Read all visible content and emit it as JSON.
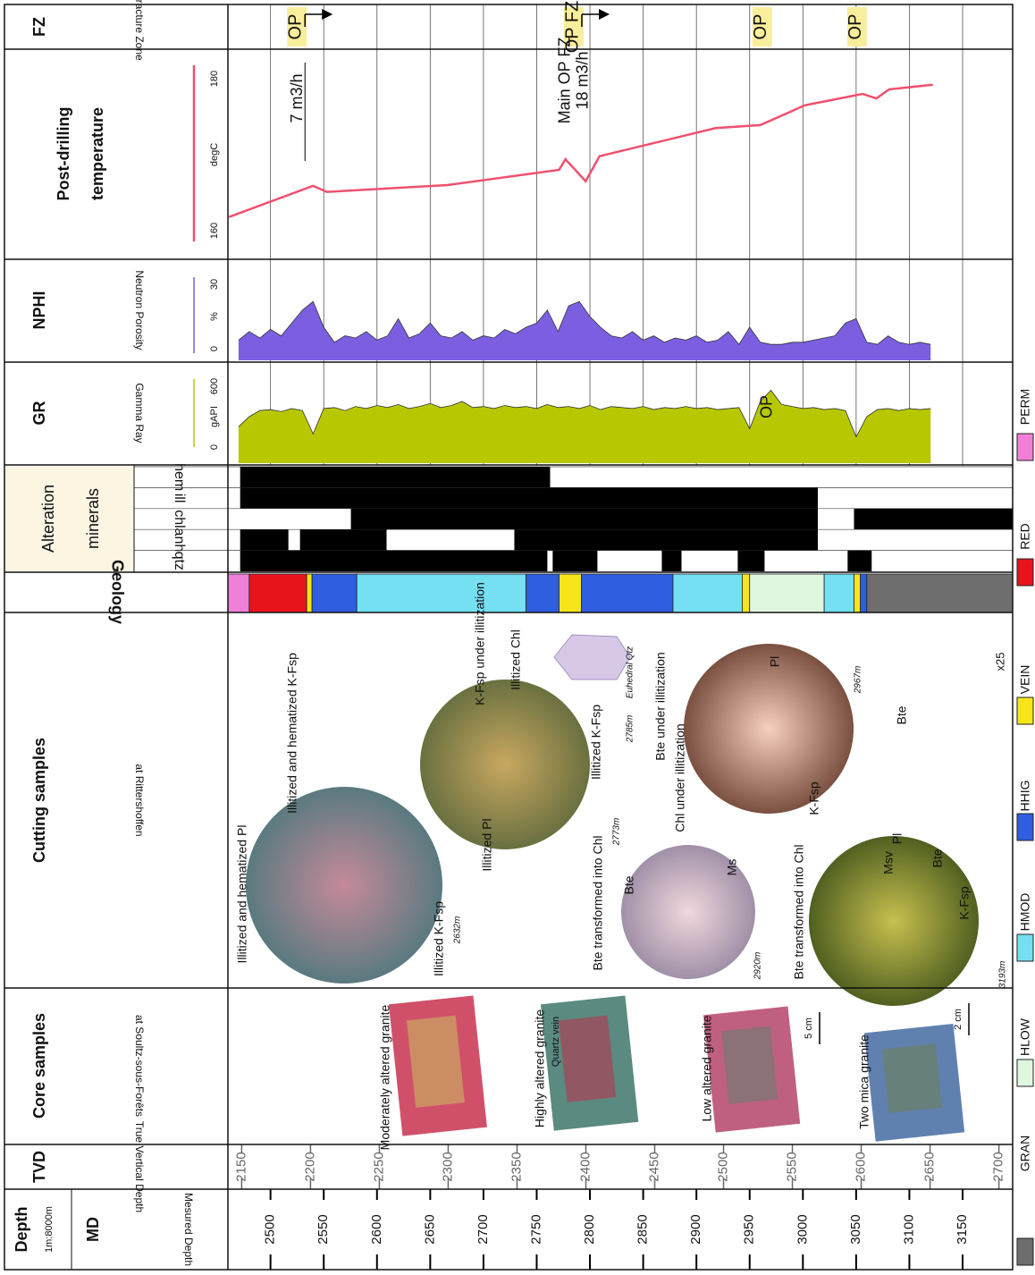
{
  "chart_data": {
    "type": "well-log",
    "md": {
      "title": "Depth",
      "scale": "1m:8000m",
      "label": "MD",
      "sublabel": "Mesured Depth",
      "xlim": [
        2460,
        3197
      ],
      "xticks": [
        2500,
        2550,
        2600,
        2650,
        2700,
        2750,
        2800,
        2850,
        2900,
        2950,
        3000,
        3050,
        3100,
        3150
      ]
    },
    "tvd": {
      "label": "TVD",
      "sublabel": "True Vertical Depth",
      "xlim": [
        2140,
        2710
      ],
      "xticks": [
        2150,
        2200,
        2250,
        2300,
        2350,
        2400,
        2450,
        2500,
        2550,
        2600,
        2650,
        2700
      ]
    },
    "core": {
      "title": "Core samples",
      "subtitle": "at Soultz-sous-Forêts",
      "samples": [
        {
          "label": "Moderately altered granite"
        },
        {
          "label": "Highly altered granite",
          "note": "Quartz vein"
        },
        {
          "label": "Low altered granite",
          "scale": "5 cm"
        },
        {
          "label": "Two mica granite",
          "scale": "2 cm"
        }
      ]
    },
    "cuttings": {
      "title": "Cutting samples",
      "subtitle": "at Rittershoffen",
      "magnification": "x25",
      "samples": [
        {
          "depth": "2632m",
          "labels": [
            "Illitized and hematized Pl",
            "Illitized and hematized K-Fsp",
            "Illitized K-Fsp"
          ]
        },
        {
          "depth": "2773m",
          "labels": [
            "K-Fsp under illitization",
            "Illitized Chl",
            "Illitized K-Fsp",
            "Illitized Pl"
          ]
        },
        {
          "depth": "2785m",
          "labels": [
            "Euhedral Qtz"
          ]
        },
        {
          "depth": "2920m",
          "labels": [
            "Bte transformed into Chl",
            "Bte",
            "Ms"
          ]
        },
        {
          "depth": "2967m",
          "labels": [
            "Bte under illitization",
            "Chl under illitization",
            "Pl",
            "Bte",
            "K-Fsp"
          ]
        },
        {
          "depth": "3193m",
          "labels": [
            "Bte transformed into Chl",
            "Msv",
            "Pl",
            "Bte",
            "K-Fsp"
          ]
        }
      ]
    },
    "geology": {
      "title": "Geology",
      "intervals": [
        {
          "top": 2460,
          "base": 2480,
          "unit": "PERM"
        },
        {
          "top": 2480,
          "base": 2534,
          "unit": "RED"
        },
        {
          "top": 2534,
          "base": 2539,
          "unit": "VEIN"
        },
        {
          "top": 2539,
          "base": 2581,
          "unit": "HHIG"
        },
        {
          "top": 2581,
          "base": 2740,
          "unit": "HMOD"
        },
        {
          "top": 2740,
          "base": 2771,
          "unit": "HHIG"
        },
        {
          "top": 2771,
          "base": 2792,
          "unit": "VEIN"
        },
        {
          "top": 2792,
          "base": 2878,
          "unit": "HHIG"
        },
        {
          "top": 2878,
          "base": 2943,
          "unit": "HMOD"
        },
        {
          "top": 2943,
          "base": 2950,
          "unit": "VEIN"
        },
        {
          "top": 2950,
          "base": 3020,
          "unit": "HLOW"
        },
        {
          "top": 3020,
          "base": 3048,
          "unit": "HMOD"
        },
        {
          "top": 3048,
          "base": 3054,
          "unit": "VEIN"
        },
        {
          "top": 3054,
          "base": 3060,
          "unit": "HHIG"
        },
        {
          "top": 3060,
          "base": 3197,
          "unit": "GRAN"
        }
      ]
    },
    "legend": [
      {
        "name": "GRAN",
        "color": "#6e6e6e"
      },
      {
        "name": "HLOW",
        "color": "#dff7df"
      },
      {
        "name": "HMOD",
        "color": "#74e0f2"
      },
      {
        "name": "HHIG",
        "color": "#2f5ee0"
      },
      {
        "name": "VEIN",
        "color": "#f7e51a"
      },
      {
        "name": "RED",
        "color": "#e8141c"
      },
      {
        "name": "PERM",
        "color": "#f07fd8"
      }
    ],
    "alteration": {
      "title": [
        "Alteration",
        "minerals"
      ],
      "minerals": [
        {
          "name": "hem",
          "intervals": [
            [
              2471.5,
              2762.6
            ]
          ]
        },
        {
          "name": "ill",
          "intervals": [
            [
              2471.5,
              3014
            ]
          ]
        },
        {
          "name": "chl",
          "intervals": [
            [
              2575.5,
              3014
            ],
            [
              3048,
              3197
            ]
          ]
        },
        {
          "name": "anh",
          "intervals": [
            [
              2471.5,
              2516.8
            ],
            [
              2527.7,
              2609
            ],
            [
              2729,
              3014
            ]
          ]
        },
        {
          "name": "qtz",
          "intervals": [
            [
              2471.5,
              2760
            ],
            [
              2765,
              2807
            ],
            [
              2867.5,
              2886
            ],
            [
              2938.8,
              2964
            ],
            [
              3042,
              3064.6
            ]
          ]
        }
      ]
    },
    "gr": {
      "label": "GR",
      "sublabel": "Gamma Ray",
      "unit": "gAPI",
      "ylim": [
        0,
        600
      ],
      "yticks": [
        0,
        600
      ],
      "color": "#b8c800",
      "annotation": {
        "md": 2967,
        "text": "OP"
      },
      "x": [
        2470,
        2480,
        2490,
        2500,
        2510,
        2520,
        2530,
        2540,
        2550,
        2560,
        2570,
        2580,
        2590,
        2600,
        2610,
        2620,
        2630,
        2640,
        2650,
        2660,
        2670,
        2680,
        2690,
        2700,
        2710,
        2720,
        2730,
        2740,
        2750,
        2760,
        2770,
        2780,
        2790,
        2800,
        2810,
        2820,
        2830,
        2840,
        2850,
        2860,
        2870,
        2880,
        2890,
        2900,
        2910,
        2920,
        2930,
        2940,
        2950,
        2960,
        2970,
        2980,
        2990,
        3000,
        3010,
        3020,
        3030,
        3040,
        3050,
        3060,
        3070,
        3080,
        3090,
        3100,
        3110,
        3120
      ],
      "values": [
        200,
        300,
        360,
        370,
        350,
        380,
        360,
        130,
        380,
        390,
        360,
        400,
        380,
        410,
        390,
        420,
        380,
        400,
        430,
        390,
        410,
        450,
        390,
        400,
        380,
        410,
        390,
        400,
        380,
        420,
        390,
        400,
        380,
        410,
        370,
        400,
        390,
        380,
        400,
        370,
        390,
        380,
        400,
        380,
        390,
        370,
        380,
        390,
        180,
        450,
        560,
        420,
        400,
        380,
        390,
        370,
        380,
        360,
        100,
        300,
        370,
        380,
        360,
        380,
        370,
        380
      ]
    },
    "nphi": {
      "label": "NPHI",
      "sublabel": "Neutron Porosity",
      "unit": "%",
      "ylim": [
        0,
        30
      ],
      "yticks": [
        0,
        30
      ],
      "color": "#7b5fe0",
      "x": [
        2470,
        2480,
        2490,
        2500,
        2510,
        2520,
        2530,
        2540,
        2550,
        2560,
        2570,
        2580,
        2590,
        2600,
        2610,
        2620,
        2630,
        2640,
        2650,
        2660,
        2670,
        2680,
        2690,
        2700,
        2710,
        2720,
        2730,
        2740,
        2750,
        2760,
        2770,
        2780,
        2790,
        2800,
        2810,
        2820,
        2830,
        2840,
        2850,
        2860,
        2870,
        2880,
        2890,
        2900,
        2910,
        2920,
        2930,
        2940,
        2950,
        2960,
        2970,
        2980,
        2990,
        3000,
        3010,
        3020,
        3030,
        3040,
        3050,
        3060,
        3070,
        3080,
        3090,
        3100,
        3110,
        3120
      ],
      "values": [
        4,
        8,
        5,
        9,
        6,
        12,
        18,
        22,
        10,
        3,
        6,
        5,
        8,
        4,
        6,
        14,
        5,
        7,
        12,
        6,
        5,
        8,
        4,
        6,
        5,
        9,
        7,
        10,
        12,
        18,
        8,
        20,
        22,
        15,
        10,
        6,
        5,
        8,
        4,
        6,
        3,
        5,
        4,
        6,
        3,
        4,
        8,
        2,
        10,
        3,
        2,
        2,
        3,
        3,
        4,
        5,
        6,
        12,
        14,
        3,
        2,
        6,
        3,
        2,
        3,
        2
      ]
    },
    "temp": {
      "title": [
        "Post-drilling",
        "temperature"
      ],
      "unit": "degC",
      "ylim": [
        160,
        180
      ],
      "yticks": [
        160,
        180
      ],
      "color": "#f0506e",
      "x": [
        2461,
        2540,
        2553,
        2666,
        2771,
        2777,
        2796,
        2809,
        2918,
        2960,
        3002,
        3056,
        3069,
        3081,
        3122
      ],
      "values": [
        161.8,
        165.9,
        165.1,
        166,
        168,
        169.4,
        166.5,
        169.8,
        173.5,
        173.9,
        176.5,
        178,
        177.4,
        178.6,
        179.2
      ]
    },
    "fz": {
      "label": "FZ",
      "sublabel": "Fracture Zone",
      "zones": [
        {
          "md": 2524,
          "label": "OP",
          "flow": "7 m3/h"
        },
        {
          "md": 2784,
          "label": "OP FZ",
          "note": "Main OP FZ",
          "flow": "18 m3/h"
        },
        {
          "md": 2961,
          "label": "OP"
        },
        {
          "md": 3050,
          "label": "OP"
        }
      ]
    }
  }
}
